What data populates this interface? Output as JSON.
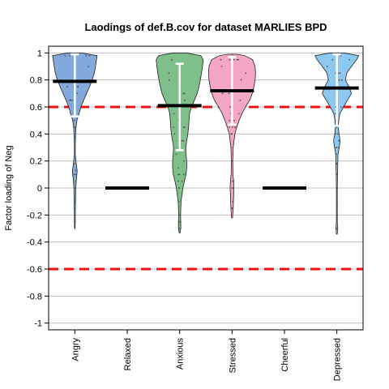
{
  "chart_data": {
    "type": "violin",
    "title": "Laodings of def.B.cov for dataset MARLIES BPD",
    "xlabel": "",
    "ylabel": "Factor loading of Neg",
    "ylim": [
      -1.05,
      1.05
    ],
    "yticks": [
      "1",
      "0.8",
      "0.6",
      "0.4",
      "0.2",
      "0",
      "-0.2",
      "-0.4",
      "-0.6",
      "-0.8",
      "-1"
    ],
    "gridlines": [
      1,
      0.8,
      0.6,
      0.4,
      0.2,
      0,
      -0.2,
      -0.4,
      -0.6,
      -0.8,
      -1
    ],
    "threshold_lines": [
      0.6,
      -0.6
    ],
    "threshold_color": "#ee1111",
    "categories": [
      "Angry",
      "Relaxed",
      "Anxious",
      "Stressed",
      "Cheerful",
      "Depressed"
    ],
    "series": [
      {
        "category": "Angry",
        "color": "#84a9dc",
        "median": 0.79,
        "interval": [
          0.53,
          0.99
        ],
        "range": [
          -0.3,
          1.0
        ],
        "density": [
          [
            -0.3,
            0.01
          ],
          [
            -0.25,
            0.02
          ],
          [
            -0.2,
            0.02
          ],
          [
            -0.1,
            0.03
          ],
          [
            0.0,
            0.04
          ],
          [
            0.05,
            0.06
          ],
          [
            0.1,
            0.09
          ],
          [
            0.13,
            0.1
          ],
          [
            0.18,
            0.06
          ],
          [
            0.25,
            0.02
          ],
          [
            0.32,
            0.02
          ],
          [
            0.38,
            0.03
          ],
          [
            0.45,
            0.05
          ],
          [
            0.5,
            0.09
          ],
          [
            0.55,
            0.18
          ],
          [
            0.6,
            0.26
          ],
          [
            0.65,
            0.37
          ],
          [
            0.7,
            0.5
          ],
          [
            0.75,
            0.63
          ],
          [
            0.8,
            0.74
          ],
          [
            0.85,
            0.83
          ],
          [
            0.9,
            0.88
          ],
          [
            0.95,
            0.92
          ],
          [
            0.98,
            0.95
          ],
          [
            1.0,
            0.3
          ]
        ]
      },
      {
        "category": "Relaxed",
        "color": "#000000",
        "median": 0,
        "flat": true
      },
      {
        "category": "Anxious",
        "color": "#7fbf8a",
        "median": 0.61,
        "interval": [
          0.28,
          0.92
        ],
        "range": [
          -0.33,
          1.0
        ],
        "density": [
          [
            -0.33,
            0.02
          ],
          [
            -0.3,
            0.05
          ],
          [
            -0.25,
            0.05
          ],
          [
            -0.2,
            0.04
          ],
          [
            -0.1,
            0.06
          ],
          [
            0.0,
            0.14
          ],
          [
            0.05,
            0.2
          ],
          [
            0.1,
            0.27
          ],
          [
            0.15,
            0.3
          ],
          [
            0.2,
            0.3
          ],
          [
            0.25,
            0.27
          ],
          [
            0.3,
            0.26
          ],
          [
            0.35,
            0.3
          ],
          [
            0.4,
            0.35
          ],
          [
            0.45,
            0.38
          ],
          [
            0.5,
            0.4
          ],
          [
            0.55,
            0.42
          ],
          [
            0.6,
            0.5
          ],
          [
            0.65,
            0.63
          ],
          [
            0.7,
            0.75
          ],
          [
            0.75,
            0.82
          ],
          [
            0.8,
            0.88
          ],
          [
            0.85,
            0.93
          ],
          [
            0.9,
            0.97
          ],
          [
            0.95,
            1.0
          ],
          [
            0.98,
            0.9
          ],
          [
            1.0,
            0.3
          ]
        ]
      },
      {
        "category": "Stressed",
        "color": "#f4a6c6",
        "median": 0.72,
        "interval": [
          0.47,
          0.97
        ],
        "range": [
          -0.22,
          0.99
        ],
        "density": [
          [
            -0.22,
            0.02
          ],
          [
            -0.15,
            0.05
          ],
          [
            -0.1,
            0.06
          ],
          [
            -0.05,
            0.07
          ],
          [
            0.0,
            0.08
          ],
          [
            0.05,
            0.07
          ],
          [
            0.1,
            0.04
          ],
          [
            0.2,
            0.03
          ],
          [
            0.3,
            0.05
          ],
          [
            0.4,
            0.12
          ],
          [
            0.45,
            0.2
          ],
          [
            0.5,
            0.3
          ],
          [
            0.55,
            0.42
          ],
          [
            0.6,
            0.57
          ],
          [
            0.65,
            0.75
          ],
          [
            0.7,
            0.86
          ],
          [
            0.75,
            0.93
          ],
          [
            0.8,
            0.98
          ],
          [
            0.85,
            1.0
          ],
          [
            0.9,
            0.98
          ],
          [
            0.95,
            0.87
          ],
          [
            0.98,
            0.55
          ],
          [
            0.99,
            0.2
          ]
        ]
      },
      {
        "category": "Cheerful",
        "color": "#000000",
        "median": 0,
        "flat": true
      },
      {
        "category": "Depressed",
        "color": "#8dc8f0",
        "median": 0.74,
        "interval": [
          0.46,
          0.99
        ],
        "range": [
          -0.34,
          1.0
        ],
        "density": [
          [
            -0.34,
            0.02
          ],
          [
            -0.3,
            0.04
          ],
          [
            -0.25,
            0.02
          ],
          [
            -0.1,
            0.02
          ],
          [
            0.0,
            0.02
          ],
          [
            0.1,
            0.03
          ],
          [
            0.18,
            0.04
          ],
          [
            0.25,
            0.05
          ],
          [
            0.3,
            0.1
          ],
          [
            0.35,
            0.14
          ],
          [
            0.4,
            0.09
          ],
          [
            0.45,
            0.06
          ],
          [
            0.5,
            0.08
          ],
          [
            0.55,
            0.13
          ],
          [
            0.6,
            0.28
          ],
          [
            0.65,
            0.45
          ],
          [
            0.7,
            0.62
          ],
          [
            0.75,
            0.52
          ],
          [
            0.8,
            0.36
          ],
          [
            0.85,
            0.42
          ],
          [
            0.9,
            0.62
          ],
          [
            0.95,
            0.84
          ],
          [
            0.98,
            0.93
          ],
          [
            1.0,
            0.3
          ]
        ]
      }
    ]
  }
}
